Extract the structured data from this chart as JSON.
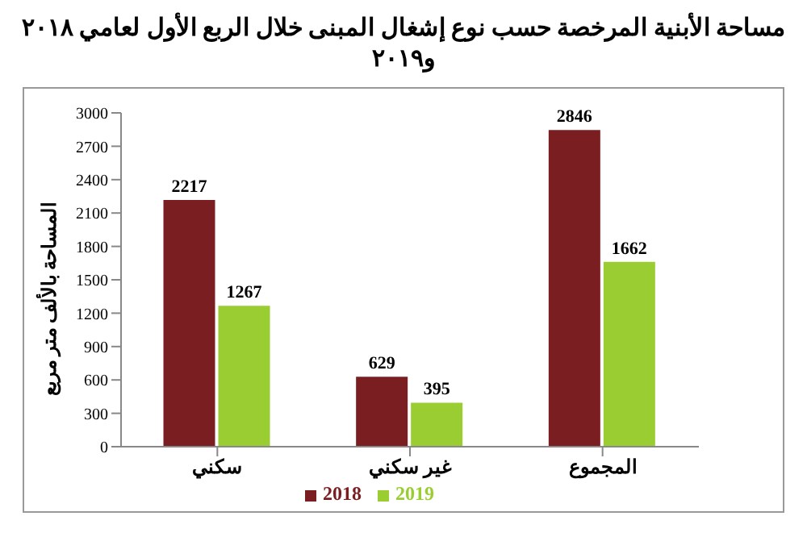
{
  "chart_data": {
    "type": "bar",
    "title": "مساحة الأبنية المرخصة حسب نوع إشغال المبنى خلال الربع الأول لعامي ٢٠١٨ و٢٠١٩",
    "ylabel": "المساحة بالألف متر مربع",
    "categories": [
      "سكني",
      "غير سكني",
      "المجموع"
    ],
    "series": [
      {
        "name": "2018",
        "color": "#7b1e22",
        "values": [
          2217,
          629,
          2846
        ]
      },
      {
        "name": "2019",
        "color": "#9acd32",
        "values": [
          1267,
          395,
          1662
        ]
      }
    ],
    "ylim": [
      0,
      3000
    ],
    "yticks": [
      0,
      300,
      600,
      900,
      1200,
      1500,
      1800,
      2100,
      2400,
      2700,
      3000
    ],
    "grid": false,
    "legend": "bottom",
    "data_labels": true
  }
}
